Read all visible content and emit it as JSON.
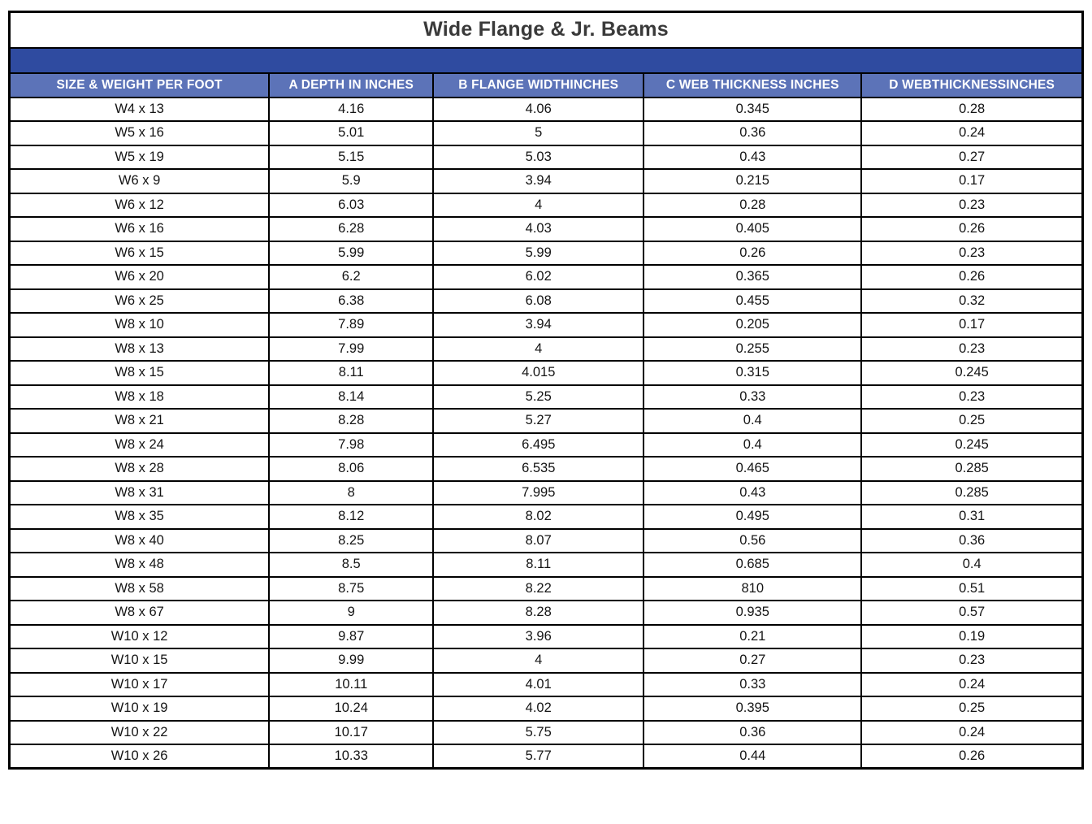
{
  "table": {
    "title": "Wide Flange & Jr. Beams",
    "columns": [
      "SIZE & WEIGHT PER FOOT",
      "A DEPTH IN INCHES",
      "B FLANGE WIDTHINCHES",
      "C WEB THICKNESS INCHES",
      "D WEBTHICKNESSINCHES"
    ],
    "rows": [
      [
        "W4 x 13",
        "4.16",
        "4.06",
        "0.345",
        "0.28"
      ],
      [
        "W5 x 16",
        "5.01",
        "5",
        "0.36",
        "0.24"
      ],
      [
        "W5 x 19",
        "5.15",
        "5.03",
        "0.43",
        "0.27"
      ],
      [
        "W6 x 9",
        "5.9",
        "3.94",
        "0.215",
        "0.17"
      ],
      [
        "W6 x 12",
        "6.03",
        "4",
        "0.28",
        "0.23"
      ],
      [
        "W6 x 16",
        "6.28",
        "4.03",
        "0.405",
        "0.26"
      ],
      [
        "W6 x 15",
        "5.99",
        "5.99",
        "0.26",
        "0.23"
      ],
      [
        "W6 x 20",
        "6.2",
        "6.02",
        "0.365",
        "0.26"
      ],
      [
        "W6 x 25",
        "6.38",
        "6.08",
        "0.455",
        "0.32"
      ],
      [
        "W8 x 10",
        "7.89",
        "3.94",
        "0.205",
        "0.17"
      ],
      [
        "W8 x 13",
        "7.99",
        "4",
        "0.255",
        "0.23"
      ],
      [
        "W8 x 15",
        "8.11",
        "4.015",
        "0.315",
        "0.245"
      ],
      [
        "W8 x 18",
        "8.14",
        "5.25",
        "0.33",
        "0.23"
      ],
      [
        "W8 x 21",
        "8.28",
        "5.27",
        "0.4",
        "0.25"
      ],
      [
        "W8 x 24",
        "7.98",
        "6.495",
        "0.4",
        "0.245"
      ],
      [
        "W8 x 28",
        "8.06",
        "6.535",
        "0.465",
        "0.285"
      ],
      [
        "W8 x 31",
        "8",
        "7.995",
        "0.43",
        "0.285"
      ],
      [
        "W8 x 35",
        "8.12",
        "8.02",
        "0.495",
        "0.31"
      ],
      [
        "W8 x 40",
        "8.25",
        "8.07",
        "0.56",
        "0.36"
      ],
      [
        "W8 x 48",
        "8.5",
        "8.11",
        "0.685",
        "0.4"
      ],
      [
        "W8 x 58",
        "8.75",
        "8.22",
        "810",
        "0.51"
      ],
      [
        "W8 x 67",
        "9",
        "8.28",
        "0.935",
        "0.57"
      ],
      [
        "W10 x 12",
        "9.87",
        "3.96",
        "0.21",
        "0.19"
      ],
      [
        "W10 x 15",
        "9.99",
        "4",
        "0.27",
        "0.23"
      ],
      [
        "W10 x 17",
        "10.11",
        "4.01",
        "0.33",
        "0.24"
      ],
      [
        "W10 x 19",
        "10.24",
        "4.02",
        "0.395",
        "0.25"
      ],
      [
        "W10 x 22",
        "10.17",
        "5.75",
        "0.36",
        "0.24"
      ],
      [
        "W10 x 26",
        "10.33",
        "5.77",
        "0.44",
        "0.26"
      ]
    ],
    "colors": {
      "band_blue": "#2F4BA0",
      "header_blue": "#5C73B8",
      "border_black": "#000000",
      "title_text": "#3a3a3a",
      "header_text": "#ffffff",
      "cell_text": "#141414"
    }
  }
}
